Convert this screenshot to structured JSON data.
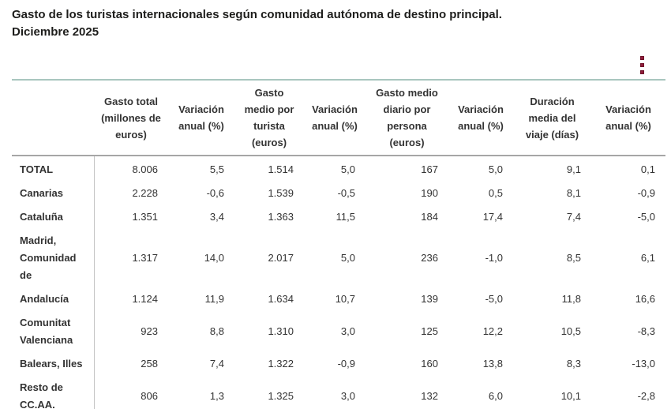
{
  "title": {
    "line1": "Gasto de los turistas internacionales según comunidad autónoma de destino principal.",
    "line2": "Diciembre 2025"
  },
  "menu": {
    "kebab_icon": "kebab-menu",
    "color": "#8f1b3a"
  },
  "colors": {
    "table_outer_border": "#a9c6bf",
    "header_divider": "#a6a6a6",
    "column_divider": "#c6c6c6",
    "text": "#333333"
  },
  "chart_data": {
    "type": "table",
    "title": "Gasto de los turistas internacionales según comunidad autónoma de destino principal. Diciembre 2025",
    "columns": [
      "",
      "Gasto total (millones de euros)",
      "Variación anual (%)",
      "Gasto medio por turista (euros)",
      "Variación anual (%)",
      "Gasto medio diario por persona (euros)",
      "Variación anual (%)",
      "Duración media del viaje (días)",
      "Variación anual (%)"
    ],
    "rows": [
      {
        "label": "TOTAL",
        "values": [
          "8.006",
          "5,5",
          "1.514",
          "5,0",
          "167",
          "5,0",
          "9,1",
          "0,1"
        ]
      },
      {
        "label": "Canarias",
        "values": [
          "2.228",
          "-0,6",
          "1.539",
          "-0,5",
          "190",
          "0,5",
          "8,1",
          "-0,9"
        ]
      },
      {
        "label": "Cataluña",
        "values": [
          "1.351",
          "3,4",
          "1.363",
          "11,5",
          "184",
          "17,4",
          "7,4",
          "-5,0"
        ]
      },
      {
        "label": "Madrid,\nComunidad\nde",
        "values": [
          "1.317",
          "14,0",
          "2.017",
          "5,0",
          "236",
          "-1,0",
          "8,5",
          "6,1"
        ]
      },
      {
        "label": "Andalucía",
        "values": [
          "1.124",
          "11,9",
          "1.634",
          "10,7",
          "139",
          "-5,0",
          "11,8",
          "16,6"
        ]
      },
      {
        "label": "Comunitat\nValenciana",
        "values": [
          "923",
          "8,8",
          "1.310",
          "3,0",
          "125",
          "12,2",
          "10,5",
          "-8,3"
        ]
      },
      {
        "label": "Balears, Illes",
        "values": [
          "258",
          "7,4",
          "1.322",
          "-0,9",
          "160",
          "13,8",
          "8,3",
          "-13,0"
        ]
      },
      {
        "label": "Resto de\nCC.AA.",
        "values": [
          "806",
          "1,3",
          "1.325",
          "3,0",
          "132",
          "6,0",
          "10,1",
          "-2,8"
        ]
      }
    ]
  }
}
